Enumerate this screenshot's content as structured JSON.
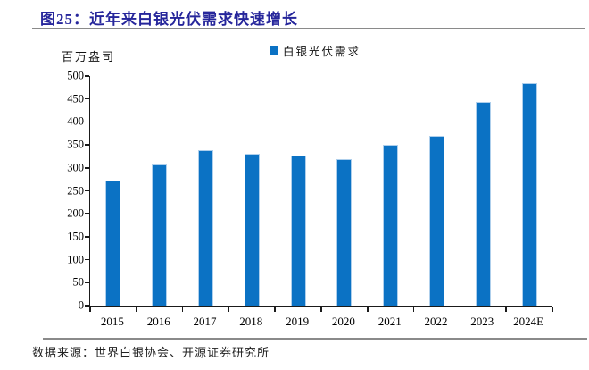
{
  "title": "图25：近年来白银光伏需求快速增长",
  "unit_label": "百万盎司",
  "legend": {
    "label": "白银光伏需求",
    "swatch_color": "#0b72c4"
  },
  "footer": {
    "source_text": "数据来源：世界白银协会、开源证券研究所"
  },
  "colors": {
    "title": "#26269B",
    "bar_fill": "#0b72c4",
    "bar_edge": "#aecfec",
    "axis": "#1a1a1a",
    "rule_gray": "#8a8a8a"
  },
  "chart_data": {
    "type": "bar",
    "title": "近年来白银光伏需求快速增长",
    "series_name": "白银光伏需求",
    "categories": [
      "2015",
      "2016",
      "2017",
      "2018",
      "2019",
      "2020",
      "2021",
      "2022",
      "2023",
      "2024E"
    ],
    "values": [
      273,
      308,
      338,
      330,
      326,
      320,
      350,
      370,
      444,
      484
    ],
    "xlabel": "",
    "ylabel": "百万盎司",
    "ylim": [
      0,
      500
    ],
    "y_ticks": [
      0,
      50,
      100,
      150,
      200,
      250,
      300,
      350,
      400,
      450,
      500
    ],
    "grid": false,
    "legend_position": "top-center"
  }
}
